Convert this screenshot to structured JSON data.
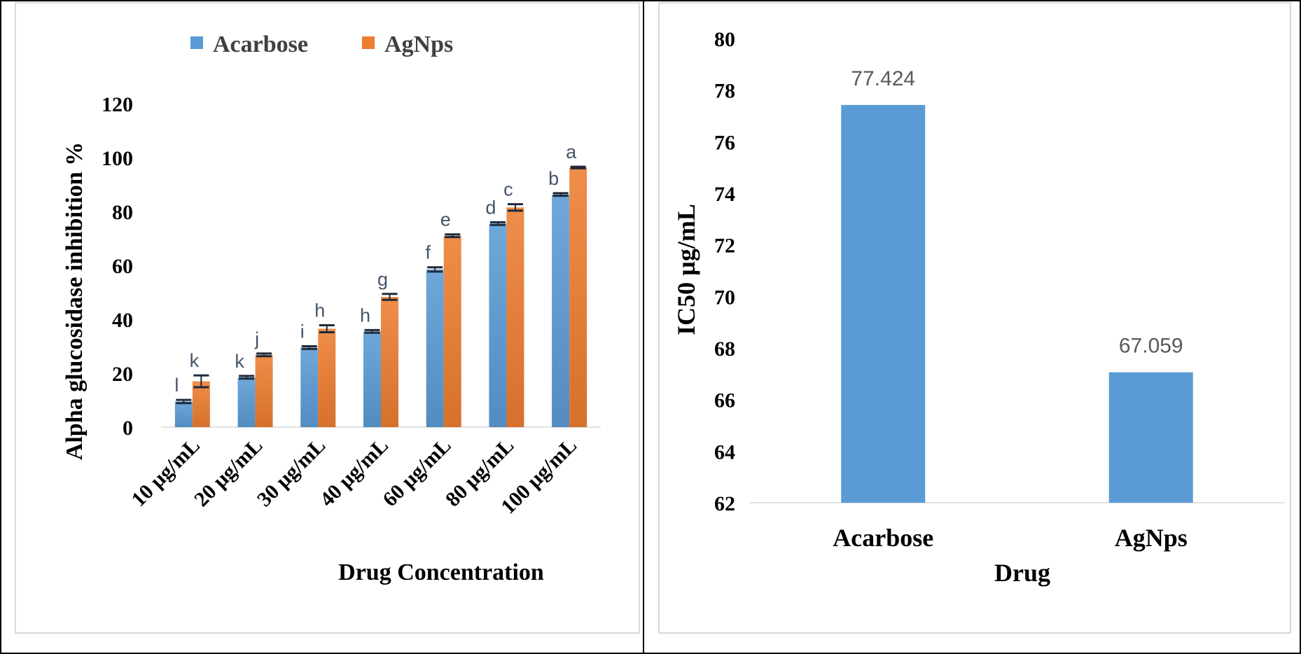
{
  "chart_data": [
    {
      "type": "bar",
      "xlabel": "Drug Concentration",
      "ylabel": "Alpha glucosidase inhibition %",
      "categories": [
        "10 µg/mL",
        "20 µg/mL",
        "30 µg/mL",
        "40 µg/mL",
        "60 µg/mL",
        "80 µg/mL",
        "100 µg/mL"
      ],
      "ylim": [
        0,
        120
      ],
      "yticks": [
        "0",
        "20",
        "40",
        "60",
        "80",
        "100",
        "120"
      ],
      "legend_position": "top",
      "series": [
        {
          "name": "Acarbose",
          "color": "#5b9bd5",
          "values": [
            9.5,
            18.5,
            29.5,
            35.5,
            58.5,
            75.5,
            86.3
          ],
          "errors": [
            0.6,
            0.5,
            0.5,
            0.5,
            0.8,
            0.5,
            0.5
          ],
          "letters": [
            "l",
            "k",
            "i",
            "h",
            "f",
            "d",
            "b"
          ]
        },
        {
          "name": "AgNps",
          "color": "#ed7d31",
          "values": [
            17,
            26.8,
            36.5,
            48.3,
            71,
            81.5,
            96.3
          ],
          "errors": [
            2.2,
            0.5,
            1.3,
            1.1,
            0.5,
            1.2,
            0.3
          ],
          "letters": [
            "k",
            "j",
            "h",
            "g",
            "e",
            "c",
            "a"
          ]
        }
      ]
    },
    {
      "type": "bar",
      "xlabel": "Drug",
      "ylabel": "IC50 µg/mL",
      "categories": [
        "Acarbose",
        "AgNps"
      ],
      "values": [
        77.424,
        67.059
      ],
      "value_labels": [
        "77.424",
        "67.059"
      ],
      "color": "#5b9bd5",
      "ylim": [
        62,
        80
      ],
      "yticks": [
        "62",
        "64",
        "66",
        "68",
        "70",
        "72",
        "74",
        "76",
        "78",
        "80"
      ]
    }
  ]
}
